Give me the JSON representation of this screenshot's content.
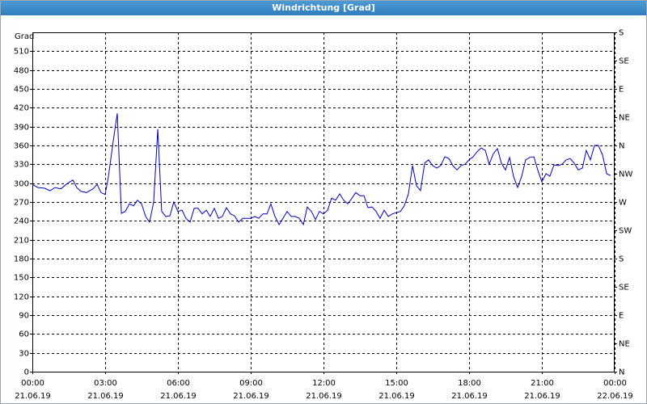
{
  "chart_data": {
    "type": "line",
    "title": "Windrichtung [Grad]",
    "ylabel": "Grad",
    "x": [
      0,
      0.23,
      0.5,
      0.73,
      0.93,
      1.17,
      1.33,
      1.5,
      1.67,
      1.83,
      2.0,
      2.23,
      2.5,
      2.67,
      2.83,
      3.0,
      3.13,
      3.33,
      3.5,
      3.67,
      3.83,
      4.0,
      4.17,
      4.33,
      4.5,
      4.67,
      4.83,
      5.0,
      5.17,
      5.33,
      5.5,
      5.67,
      5.83,
      6.0,
      6.17,
      6.33,
      6.5,
      6.67,
      6.83,
      7.0,
      7.17,
      7.33,
      7.5,
      7.67,
      7.83,
      8.0,
      8.17,
      8.33,
      8.5,
      8.67,
      8.83,
      9.0,
      9.17,
      9.33,
      9.5,
      9.67,
      9.83,
      10.0,
      10.17,
      10.33,
      10.5,
      10.67,
      10.83,
      11.0,
      11.17,
      11.33,
      11.5,
      11.67,
      11.83,
      12.0,
      12.17,
      12.33,
      12.5,
      12.67,
      12.83,
      13.0,
      13.17,
      13.33,
      13.5,
      13.67,
      13.83,
      14.0,
      14.17,
      14.33,
      14.5,
      14.67,
      14.83,
      15.0,
      15.17,
      15.33,
      15.5,
      15.67,
      15.83,
      16.0,
      16.17,
      16.33,
      16.5,
      16.67,
      16.83,
      17.0,
      17.17,
      17.33,
      17.5,
      17.67,
      17.83,
      18.0,
      18.17,
      18.33,
      18.5,
      18.67,
      18.83,
      19.0,
      19.17,
      19.33,
      19.5,
      19.67,
      19.83,
      20.0,
      20.17,
      20.33,
      20.5,
      20.67,
      20.83,
      21.0,
      21.17,
      21.33,
      21.5,
      21.67,
      21.83,
      22.0,
      22.17,
      22.33,
      22.5,
      22.67,
      22.83,
      23.0,
      23.17,
      23.33,
      23.5,
      23.67,
      23.83
    ],
    "series": [
      {
        "color": "#0000c0",
        "values": [
          298,
          293,
          292,
          288,
          293,
          291,
          296,
          301,
          305,
          293,
          287,
          285,
          291,
          298,
          285,
          282,
          309,
          366,
          411,
          252,
          255,
          267,
          264,
          273,
          267,
          247,
          238,
          270,
          386,
          255,
          247,
          248,
          270,
          255,
          257,
          244,
          238,
          260,
          260,
          251,
          257,
          247,
          260,
          244,
          247,
          261,
          251,
          248,
          238,
          244,
          244,
          244,
          247,
          244,
          251,
          251,
          267,
          247,
          234,
          244,
          255,
          247,
          247,
          244,
          234,
          262,
          255,
          242,
          255,
          251,
          257,
          276,
          273,
          283,
          273,
          267,
          276,
          285,
          280,
          280,
          261,
          262,
          255,
          244,
          257,
          247,
          251,
          253,
          255,
          264,
          283,
          328,
          296,
          288,
          332,
          337,
          328,
          324,
          328,
          342,
          339,
          328,
          321,
          328,
          330,
          337,
          342,
          350,
          356,
          352,
          330,
          347,
          355,
          332,
          321,
          341,
          311,
          293,
          311,
          337,
          341,
          342,
          321,
          302,
          315,
          311,
          329,
          328,
          330,
          337,
          339,
          332,
          321,
          324,
          352,
          337,
          360,
          360,
          345,
          315,
          312
        ]
      }
    ],
    "xlim": [
      0,
      24
    ],
    "xticks": [
      {
        "value": 0,
        "label": "00:00"
      },
      {
        "value": 3,
        "label": "03:00"
      },
      {
        "value": 6,
        "label": "06:00"
      },
      {
        "value": 9,
        "label": "09:00"
      },
      {
        "value": 12,
        "label": "12:00"
      },
      {
        "value": 15,
        "label": "15:00"
      },
      {
        "value": 18,
        "label": "18:00"
      },
      {
        "value": 21,
        "label": "21:00"
      },
      {
        "value": 24,
        "label": "00:00"
      }
    ],
    "xtick_dates": [
      "21.06.19",
      "21.06.19",
      "21.06.19",
      "21.06.19",
      "21.06.19",
      "21.06.19",
      "21.06.19",
      "21.06.19",
      "22.06.19"
    ],
    "ylim": [
      0,
      540
    ],
    "yticks": [
      0,
      30,
      60,
      90,
      120,
      150,
      180,
      210,
      240,
      270,
      300,
      330,
      360,
      390,
      420,
      450,
      480,
      510
    ],
    "y2lim": [
      0,
      540
    ],
    "y2ticks": [
      {
        "value": 0,
        "label": "N"
      },
      {
        "value": 45,
        "label": "NE"
      },
      {
        "value": 90,
        "label": "E"
      },
      {
        "value": 135,
        "label": "SE"
      },
      {
        "value": 180,
        "label": "S"
      },
      {
        "value": 225,
        "label": "SW"
      },
      {
        "value": 270,
        "label": "W"
      },
      {
        "value": 315,
        "label": "NW"
      },
      {
        "value": 360,
        "label": "N"
      },
      {
        "value": 405,
        "label": "NE"
      },
      {
        "value": 450,
        "label": "E"
      },
      {
        "value": 495,
        "label": "SE"
      },
      {
        "value": 540,
        "label": "S"
      }
    ],
    "grid": true
  }
}
